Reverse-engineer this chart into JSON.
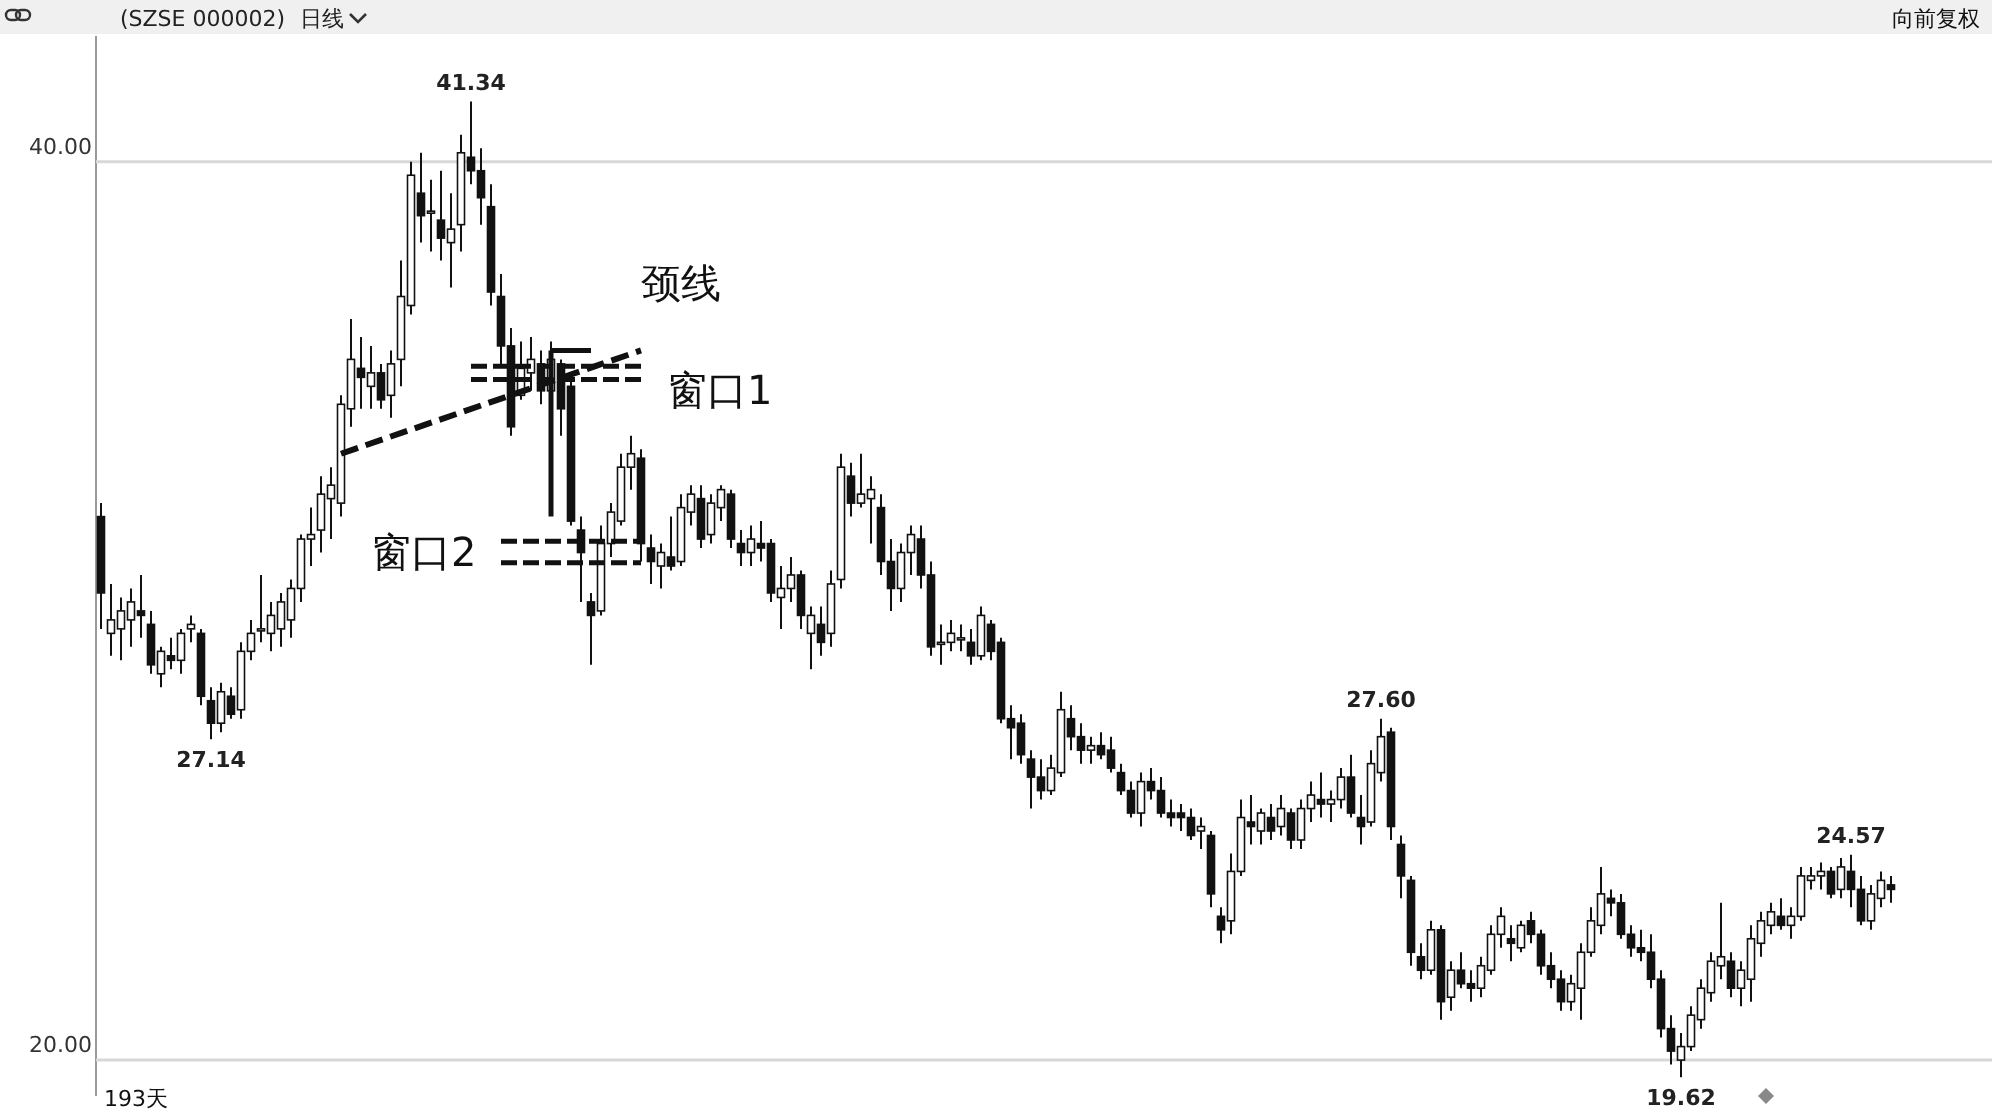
{
  "chart_data": {
    "type": "candlestick",
    "title": "(SZSE 000002)",
    "subtitle": "日线",
    "annotations": [
      "向前复权",
      "193天",
      "颈线",
      "窗口1",
      "窗口2",
      {
        "text": "41.34",
        "y": 41.34
      },
      {
        "text": "27.14",
        "y": 27.14
      },
      {
        "text": "27.60",
        "y": 27.6
      },
      {
        "text": "19.62",
        "y": 19.62
      },
      {
        "text": "24.57",
        "y": 24.57
      }
    ],
    "ylim": [
      19.2,
      42.8
    ],
    "yticks": [
      {
        "value": 20,
        "label": "20.00"
      },
      {
        "value": 40,
        "label": "40.00"
      }
    ],
    "grid": "y",
    "tick_labels": "y",
    "categories": [
      null,
      null,
      null,
      null,
      null,
      null,
      null,
      null,
      null,
      null,
      null,
      null,
      null,
      null,
      null,
      null,
      null,
      null,
      null,
      null,
      null,
      null,
      null,
      null,
      null,
      null,
      null,
      null,
      null,
      null,
      null,
      null,
      null,
      null,
      null,
      null,
      null,
      null,
      null,
      null,
      null,
      null,
      null,
      null,
      null,
      null,
      null,
      null,
      null,
      null,
      null,
      null,
      null,
      null,
      null,
      null,
      null,
      null,
      null,
      null,
      null,
      null,
      null,
      null,
      null,
      null,
      null,
      null,
      null,
      null,
      null,
      null,
      null,
      null,
      null,
      null,
      null,
      null,
      null,
      null,
      null,
      null,
      null,
      null,
      null,
      null,
      null,
      null,
      null,
      null,
      null,
      null,
      null,
      null,
      null,
      null,
      null,
      null,
      null,
      null,
      null,
      null,
      null,
      null,
      null,
      null,
      null,
      null,
      null,
      null,
      null,
      null,
      null,
      null,
      null,
      null,
      null,
      null,
      null,
      null,
      null,
      null,
      null,
      null,
      null,
      null,
      null,
      null,
      null,
      null,
      null,
      null,
      null,
      null,
      null,
      null,
      null,
      null,
      null,
      null,
      null,
      null,
      null,
      null,
      null,
      null,
      null,
      null,
      null,
      null,
      null,
      null,
      null,
      null,
      null,
      null,
      null,
      null,
      null,
      null,
      null,
      null,
      null,
      null,
      null,
      null,
      null,
      null,
      null,
      null,
      null,
      null,
      null,
      null,
      null,
      null,
      null,
      null,
      null,
      null
    ],
    "ohlc": [
      [
        32.1,
        32.4,
        29.6,
        30.4
      ],
      [
        29.5,
        30.6,
        29.0,
        29.8
      ],
      [
        29.6,
        30.3,
        28.9,
        30.0
      ],
      [
        29.8,
        30.5,
        29.2,
        30.2
      ],
      [
        30.0,
        30.8,
        29.4,
        29.9
      ],
      [
        29.7,
        30.0,
        28.6,
        28.8
      ],
      [
        28.6,
        29.2,
        28.3,
        29.1
      ],
      [
        29.0,
        29.4,
        28.7,
        28.9
      ],
      [
        28.9,
        29.6,
        28.6,
        29.5
      ],
      [
        29.6,
        29.9,
        29.3,
        29.7
      ],
      [
        29.5,
        29.6,
        27.9,
        28.1
      ],
      [
        28.0,
        28.3,
        27.14,
        27.5
      ],
      [
        27.5,
        28.4,
        27.3,
        28.2
      ],
      [
        28.1,
        28.3,
        27.6,
        27.7
      ],
      [
        27.8,
        29.3,
        27.6,
        29.1
      ],
      [
        29.1,
        29.8,
        28.9,
        29.5
      ],
      [
        29.6,
        30.8,
        29.3,
        29.6
      ],
      [
        29.5,
        30.2,
        29.1,
        29.9
      ],
      [
        29.6,
        30.4,
        29.2,
        30.2
      ],
      [
        29.8,
        30.7,
        29.4,
        30.5
      ],
      [
        30.5,
        31.7,
        30.2,
        31.6
      ],
      [
        31.6,
        32.3,
        31.0,
        31.7
      ],
      [
        31.8,
        33.0,
        31.3,
        32.6
      ],
      [
        32.5,
        33.2,
        31.6,
        32.8
      ],
      [
        32.4,
        34.8,
        32.1,
        34.6
      ],
      [
        34.5,
        36.5,
        34.1,
        35.6
      ],
      [
        35.4,
        36.1,
        34.5,
        35.2
      ],
      [
        35.0,
        35.9,
        34.5,
        35.3
      ],
      [
        35.3,
        35.5,
        34.5,
        34.7
      ],
      [
        34.8,
        35.8,
        34.3,
        35.5
      ],
      [
        35.6,
        37.8,
        35.0,
        37.0
      ],
      [
        36.8,
        40.0,
        36.6,
        39.7
      ],
      [
        39.3,
        40.2,
        38.2,
        38.8
      ],
      [
        38.9,
        39.6,
        38.0,
        38.9
      ],
      [
        38.7,
        39.8,
        37.8,
        38.3
      ],
      [
        38.2,
        39.3,
        37.2,
        38.5
      ],
      [
        38.6,
        40.6,
        38.0,
        40.2
      ],
      [
        40.1,
        41.34,
        39.5,
        39.8
      ],
      [
        39.8,
        40.3,
        38.6,
        39.2
      ],
      [
        39.0,
        39.5,
        36.8,
        37.1
      ],
      [
        37.0,
        37.5,
        35.5,
        35.9
      ],
      [
        35.9,
        36.3,
        33.9,
        34.1
      ],
      [
        34.8,
        36.0,
        34.7,
        35.4
      ],
      [
        35.3,
        36.1,
        34.9,
        35.6
      ],
      [
        35.5,
        35.8,
        34.6,
        34.9
      ],
      [
        34.9,
        36.0,
        34.5,
        35.6
      ],
      [
        35.5,
        35.6,
        33.9,
        34.5
      ],
      [
        35.0,
        35.1,
        31.9,
        32.0
      ],
      [
        31.8,
        32.1,
        30.2,
        31.3
      ],
      [
        30.2,
        30.4,
        28.8,
        29.9
      ],
      [
        30.0,
        31.9,
        29.9,
        31.5
      ],
      [
        31.5,
        32.4,
        31.2,
        32.2
      ],
      [
        32.0,
        33.5,
        31.9,
        33.2
      ],
      [
        33.2,
        33.9,
        32.7,
        33.5
      ],
      [
        33.4,
        33.6,
        31.1,
        31.5
      ],
      [
        31.4,
        31.7,
        30.6,
        31.1
      ],
      [
        31.0,
        31.5,
        30.5,
        31.3
      ],
      [
        31.2,
        32.1,
        30.9,
        31.0
      ],
      [
        31.1,
        32.6,
        31.0,
        32.3
      ],
      [
        32.2,
        32.8,
        31.9,
        32.6
      ],
      [
        32.5,
        32.8,
        31.4,
        31.6
      ],
      [
        31.7,
        32.6,
        31.5,
        32.4
      ],
      [
        32.3,
        32.8,
        32.0,
        32.7
      ],
      [
        32.6,
        32.7,
        31.4,
        31.6
      ],
      [
        31.5,
        31.8,
        31.0,
        31.3
      ],
      [
        31.3,
        31.9,
        31.0,
        31.6
      ],
      [
        31.5,
        32.0,
        31.1,
        31.4
      ],
      [
        31.5,
        31.6,
        30.2,
        30.4
      ],
      [
        30.3,
        31.0,
        29.6,
        30.5
      ],
      [
        30.5,
        31.2,
        30.2,
        30.8
      ],
      [
        30.8,
        30.9,
        29.6,
        29.9
      ],
      [
        29.5,
        30.1,
        28.7,
        29.9
      ],
      [
        29.7,
        30.1,
        29.0,
        29.3
      ],
      [
        29.5,
        30.9,
        29.2,
        30.6
      ],
      [
        30.7,
        33.5,
        30.5,
        33.2
      ],
      [
        33.0,
        33.3,
        32.1,
        32.4
      ],
      [
        32.4,
        33.5,
        32.3,
        32.6
      ],
      [
        32.5,
        33.0,
        31.5,
        32.7
      ],
      [
        32.3,
        32.6,
        30.8,
        31.1
      ],
      [
        31.1,
        31.6,
        30.0,
        30.5
      ],
      [
        30.5,
        31.5,
        30.2,
        31.3
      ],
      [
        31.3,
        31.9,
        30.8,
        31.7
      ],
      [
        31.6,
        31.9,
        30.5,
        30.8
      ],
      [
        30.8,
        31.1,
        29.0,
        29.2
      ],
      [
        29.3,
        29.7,
        28.8,
        29.3
      ],
      [
        29.3,
        29.8,
        29.1,
        29.5
      ],
      [
        29.4,
        29.7,
        29.1,
        29.4
      ],
      [
        29.3,
        29.6,
        28.8,
        29.0
      ],
      [
        29.0,
        30.1,
        28.9,
        29.9
      ],
      [
        29.7,
        29.8,
        28.9,
        29.1
      ],
      [
        29.3,
        29.4,
        27.5,
        27.6
      ],
      [
        27.6,
        27.9,
        26.7,
        27.4
      ],
      [
        27.5,
        27.7,
        26.6,
        26.8
      ],
      [
        26.7,
        26.9,
        25.6,
        26.3
      ],
      [
        26.3,
        26.7,
        25.8,
        26.0
      ],
      [
        26.0,
        26.8,
        25.9,
        26.5
      ],
      [
        26.4,
        28.2,
        26.3,
        27.8
      ],
      [
        27.6,
        27.9,
        26.9,
        27.2
      ],
      [
        27.2,
        27.5,
        26.6,
        26.9
      ],
      [
        26.9,
        27.2,
        26.6,
        27.0
      ],
      [
        27.0,
        27.3,
        26.7,
        26.8
      ],
      [
        26.9,
        27.2,
        26.4,
        26.5
      ],
      [
        26.4,
        26.6,
        25.9,
        26.0
      ],
      [
        26.0,
        26.2,
        25.4,
        25.5
      ],
      [
        25.5,
        26.4,
        25.2,
        26.2
      ],
      [
        26.2,
        26.5,
        25.8,
        26.0
      ],
      [
        26.0,
        26.3,
        25.4,
        25.5
      ],
      [
        25.5,
        25.8,
        25.2,
        25.4
      ],
      [
        25.5,
        25.7,
        25.1,
        25.4
      ],
      [
        25.4,
        25.6,
        24.9,
        25.0
      ],
      [
        25.1,
        25.4,
        24.7,
        25.2
      ],
      [
        25.0,
        25.1,
        23.4,
        23.7
      ],
      [
        23.2,
        23.4,
        22.6,
        22.9
      ],
      [
        23.1,
        24.6,
        22.8,
        24.2
      ],
      [
        24.2,
        25.8,
        24.1,
        25.4
      ],
      [
        25.3,
        25.9,
        24.8,
        25.2
      ],
      [
        25.1,
        25.6,
        24.8,
        25.5
      ],
      [
        25.4,
        25.7,
        24.9,
        25.1
      ],
      [
        25.2,
        25.9,
        25.0,
        25.6
      ],
      [
        25.5,
        25.6,
        24.7,
        24.9
      ],
      [
        24.9,
        25.8,
        24.7,
        25.6
      ],
      [
        25.6,
        26.2,
        25.3,
        25.9
      ],
      [
        25.8,
        26.4,
        25.4,
        25.7
      ],
      [
        25.7,
        26.0,
        25.3,
        25.8
      ],
      [
        25.8,
        26.5,
        25.6,
        26.3
      ],
      [
        26.3,
        26.8,
        25.4,
        25.5
      ],
      [
        25.4,
        25.9,
        24.8,
        25.2
      ],
      [
        25.3,
        26.9,
        25.2,
        26.6
      ],
      [
        26.4,
        27.6,
        26.2,
        27.2
      ],
      [
        27.3,
        27.4,
        24.9,
        25.2
      ],
      [
        24.8,
        25.0,
        23.6,
        24.1
      ],
      [
        24.0,
        24.1,
        22.1,
        22.4
      ],
      [
        22.3,
        22.6,
        21.8,
        22.0
      ],
      [
        22.0,
        23.1,
        21.9,
        22.9
      ],
      [
        22.9,
        23.0,
        20.9,
        21.3
      ],
      [
        21.4,
        22.2,
        21.1,
        22.0
      ],
      [
        22.0,
        22.4,
        21.6,
        21.7
      ],
      [
        21.7,
        22.0,
        21.3,
        21.6
      ],
      [
        21.6,
        22.3,
        21.4,
        22.1
      ],
      [
        22.0,
        23.0,
        21.9,
        22.8
      ],
      [
        22.8,
        23.4,
        22.5,
        23.2
      ],
      [
        22.7,
        23.0,
        22.2,
        22.6
      ],
      [
        22.5,
        23.1,
        22.4,
        23.0
      ],
      [
        23.1,
        23.3,
        22.6,
        22.8
      ],
      [
        22.8,
        22.9,
        21.9,
        22.1
      ],
      [
        22.1,
        22.4,
        21.6,
        21.8
      ],
      [
        21.8,
        22.0,
        21.1,
        21.3
      ],
      [
        21.3,
        21.9,
        21.1,
        21.7
      ],
      [
        21.6,
        22.6,
        20.9,
        22.4
      ],
      [
        22.4,
        23.4,
        22.3,
        23.1
      ],
      [
        23.0,
        24.3,
        22.8,
        23.7
      ],
      [
        23.6,
        23.8,
        23.2,
        23.5
      ],
      [
        23.5,
        23.7,
        22.7,
        22.8
      ],
      [
        22.8,
        23.0,
        22.3,
        22.5
      ],
      [
        22.5,
        22.9,
        22.2,
        22.4
      ],
      [
        22.4,
        22.8,
        21.6,
        21.8
      ],
      [
        21.8,
        22.0,
        20.5,
        20.7
      ],
      [
        20.7,
        21.0,
        19.9,
        20.2
      ],
      [
        20.0,
        20.6,
        19.62,
        20.3
      ],
      [
        20.3,
        21.2,
        20.2,
        21.0
      ],
      [
        20.9,
        21.8,
        20.7,
        21.6
      ],
      [
        21.5,
        22.4,
        21.3,
        22.2
      ],
      [
        22.1,
        23.5,
        21.8,
        22.3
      ],
      [
        22.2,
        22.4,
        21.4,
        21.6
      ],
      [
        21.6,
        22.2,
        21.2,
        22.0
      ],
      [
        21.8,
        23.0,
        21.3,
        22.7
      ],
      [
        22.6,
        23.3,
        22.3,
        23.1
      ],
      [
        23.0,
        23.5,
        22.8,
        23.3
      ],
      [
        23.2,
        23.6,
        22.9,
        23.0
      ],
      [
        23.0,
        23.4,
        22.7,
        23.2
      ],
      [
        23.2,
        24.3,
        23.1,
        24.1
      ],
      [
        24.0,
        24.3,
        23.8,
        24.1
      ],
      [
        24.1,
        24.4,
        23.8,
        24.2
      ],
      [
        24.2,
        24.3,
        23.6,
        23.7
      ],
      [
        23.8,
        24.5,
        23.6,
        24.3
      ],
      [
        24.2,
        24.57,
        23.4,
        23.8
      ],
      [
        23.8,
        24.1,
        23.0,
        23.1
      ],
      [
        23.1,
        23.9,
        22.9,
        23.7
      ],
      [
        23.6,
        24.2,
        23.4,
        24.0
      ],
      [
        23.9,
        24.1,
        23.5,
        23.8
      ]
    ]
  }
}
